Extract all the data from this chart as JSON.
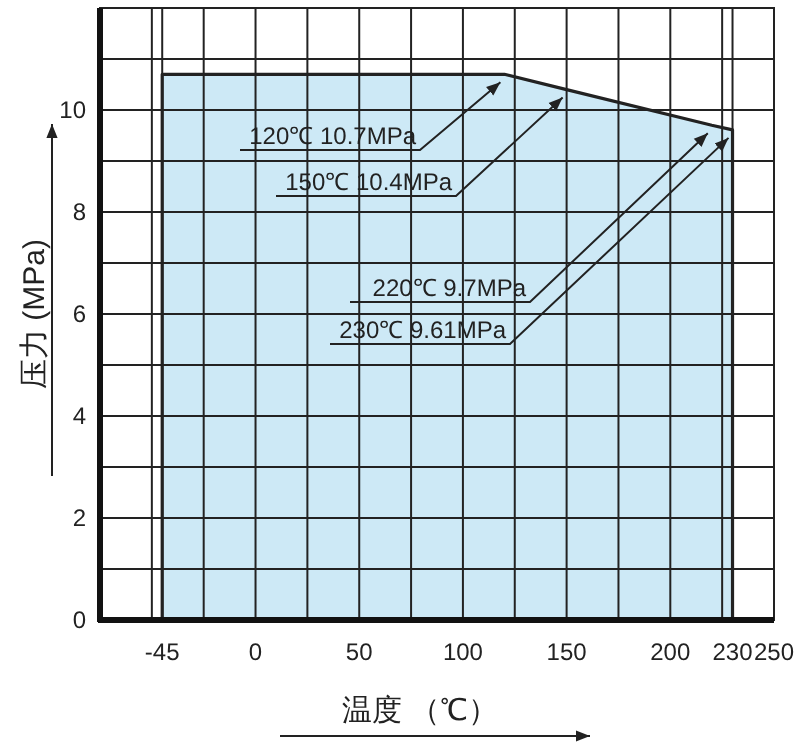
{
  "chart_data": {
    "type": "area",
    "xlabel": "温度 （℃）",
    "ylabel": "压力 (MPa)",
    "x": [
      -45,
      120,
      150,
      220,
      230
    ],
    "series": [
      {
        "color": "#cde9f6",
        "values": [
          10.7,
          10.7,
          10.4,
          9.7,
          9.61
        ]
      }
    ],
    "xlim": [
      -75,
      250
    ],
    "ylim": [
      0,
      12
    ],
    "xticks": [
      {
        "value": -75,
        "label": null
      },
      {
        "value": -50,
        "label": null
      },
      -45,
      {
        "value": -25,
        "label": null
      },
      0,
      {
        "value": 25,
        "label": null
      },
      50,
      {
        "value": 75,
        "label": null
      },
      100,
      {
        "value": 125,
        "label": null
      },
      150,
      {
        "value": 175,
        "label": null
      },
      200,
      {
        "value": 225,
        "label": null
      },
      230,
      250
    ],
    "yticks": [
      0,
      {
        "value": 1,
        "label": null
      },
      2,
      {
        "value": 3,
        "label": null
      },
      4,
      {
        "value": 5,
        "label": null
      },
      6,
      {
        "value": 7,
        "label": null
      },
      8,
      {
        "value": 9,
        "label": null
      },
      10,
      {
        "value": 11,
        "label": null
      },
      {
        "value": 12,
        "label": null
      }
    ],
    "grid": true,
    "annotations": [
      {
        "text": "120℃ 10.7MPa",
        "x": 120,
        "y": 10.7
      },
      {
        "text": "150℃ 10.4MPa",
        "x": 150,
        "y": 10.4
      },
      {
        "text": "220℃ 9.7MPa",
        "x": 220,
        "y": 9.7
      },
      {
        "text": "230℃ 9.61MPa",
        "x": 230,
        "y": 9.61
      }
    ]
  }
}
